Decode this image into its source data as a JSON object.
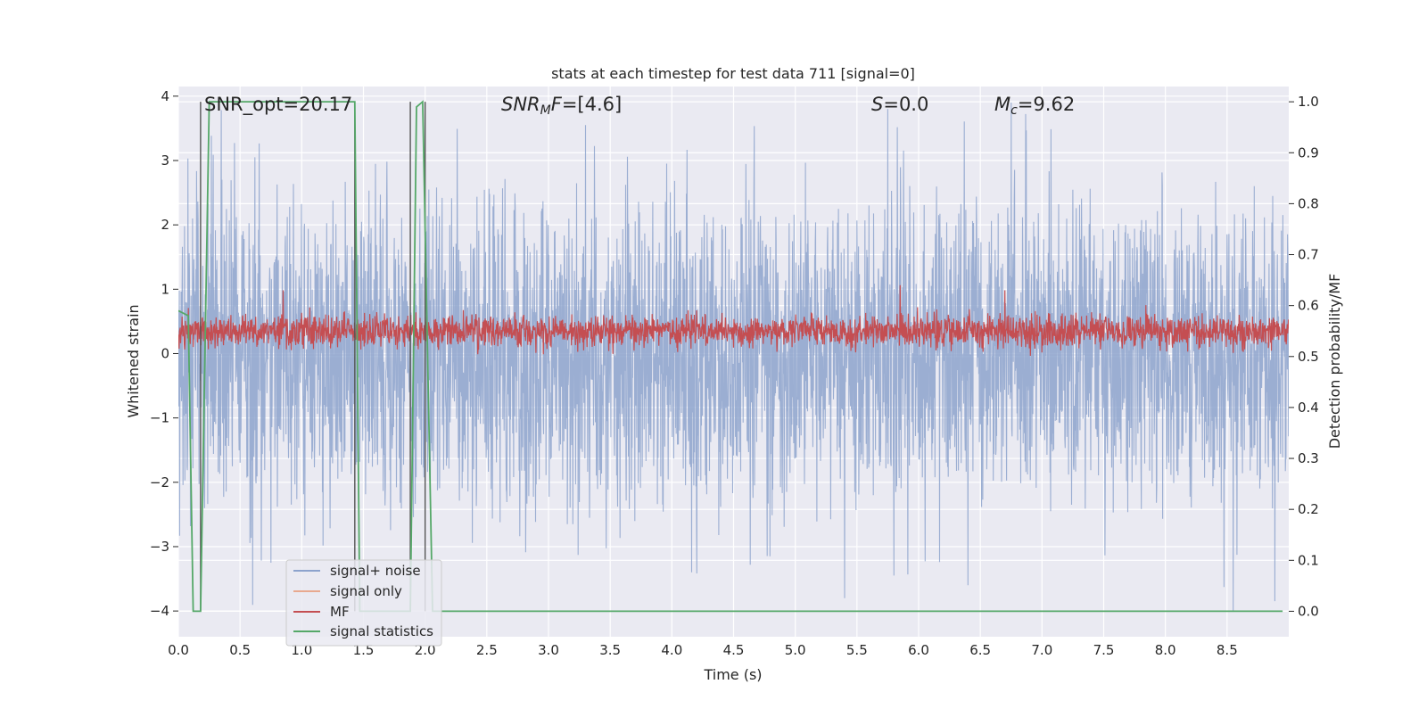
{
  "chart_data": {
    "type": "line",
    "title": "stats at each timestep for test data 711 [signal=0]",
    "xlabel": "Time (s)",
    "ylabel": "Whitened strain",
    "ylabel_right": "Detection probability/MF",
    "xlim": [
      0.0,
      9.0
    ],
    "ylim": [
      -4.4,
      4.15
    ],
    "ylim_right": [
      -0.05,
      1.03
    ],
    "xticks": [
      0.0,
      0.5,
      1.0,
      1.5,
      2.0,
      2.5,
      3.0,
      3.5,
      4.0,
      4.5,
      5.0,
      5.5,
      6.0,
      6.5,
      7.0,
      7.5,
      8.0,
      8.5
    ],
    "xtick_labels": [
      "0.0",
      "0.5",
      "1.0",
      "1.5",
      "2.0",
      "2.5",
      "3.0",
      "3.5",
      "4.0",
      "4.5",
      "5.0",
      "5.5",
      "6.0",
      "6.5",
      "7.0",
      "7.5",
      "8.0",
      "8.5"
    ],
    "yticks": [
      4,
      3,
      2,
      1,
      0,
      -1,
      -2,
      -3,
      -4
    ],
    "ytick_labels": [
      "4",
      "3",
      "2",
      "1",
      "0",
      "−1",
      "−2",
      "−3",
      "−4"
    ],
    "yticks_right": [
      1.0,
      0.9,
      0.8,
      0.7,
      0.6,
      0.5,
      0.4,
      0.3,
      0.2,
      0.1,
      0.0
    ],
    "ytick_labels_right": [
      "1.0",
      "0.9",
      "0.8",
      "0.7",
      "0.6",
      "0.5",
      "0.4",
      "0.3",
      "0.2",
      "0.1",
      "0.0"
    ],
    "annotations": {
      "snr_opt": "SNR_opt=20.17",
      "snr_mf_label": "SNR",
      "snr_mf_sub": "M",
      "snr_mf_rest": "F",
      "snr_mf_value": "=[4.6]",
      "s_label": "S",
      "s_value": "=0.0",
      "mc_label": "M",
      "mc_sub": "c",
      "mc_value": "=9.62"
    },
    "legend": {
      "position": "lower-left",
      "entries": [
        {
          "label": "signal+ noise",
          "color": "#8da3cd"
        },
        {
          "label": "signal only",
          "color": "#e8a98f"
        },
        {
          "label": "MF",
          "color": "#c44e52"
        },
        {
          "label": "signal statistics",
          "color": "#55a868"
        }
      ]
    },
    "series": [
      {
        "name": "signal+ noise",
        "axis": "left",
        "color": "#8da3cd",
        "description": "whitened strain noise, roughly -2.5 to 2.5 with spikes up to ~3.8 / down to ~-4",
        "amplitude_envelope": 2.2,
        "spikes": [
          [
            0.62,
            3.05
          ],
          [
            0.75,
            -3.25
          ],
          [
            3.3,
            3.55
          ],
          [
            4.16,
            -3.4
          ],
          [
            5.4,
            -3.8
          ],
          [
            5.75,
            3.8
          ],
          [
            5.8,
            -3.45
          ],
          [
            6.4,
            -3.6
          ],
          [
            6.75,
            3.9
          ],
          [
            8.55,
            -4.0
          ]
        ]
      },
      {
        "name": "MF",
        "axis": "right",
        "color": "#c44e52",
        "baseline": 0.55,
        "range": [
          0.5,
          0.62
        ],
        "peaks": [
          [
            0.85,
            0.63
          ],
          [
            5.85,
            0.64
          ],
          [
            6.7,
            0.63
          ]
        ]
      },
      {
        "name": "signal statistics",
        "axis": "right",
        "color": "#55a868",
        "x": [
          0.0,
          0.08,
          0.12,
          0.18,
          0.25,
          1.43,
          1.47,
          1.5,
          1.88,
          1.93,
          1.98,
          2.06,
          2.15,
          8.95
        ],
        "y": [
          0.59,
          0.58,
          0.0,
          0.0,
          1.0,
          1.0,
          0.0,
          0.0,
          0.0,
          0.99,
          1.0,
          0.0,
          0.0,
          0.0
        ]
      }
    ],
    "vertical_markers": [
      0.18,
      1.43,
      1.88,
      2.0
    ]
  }
}
